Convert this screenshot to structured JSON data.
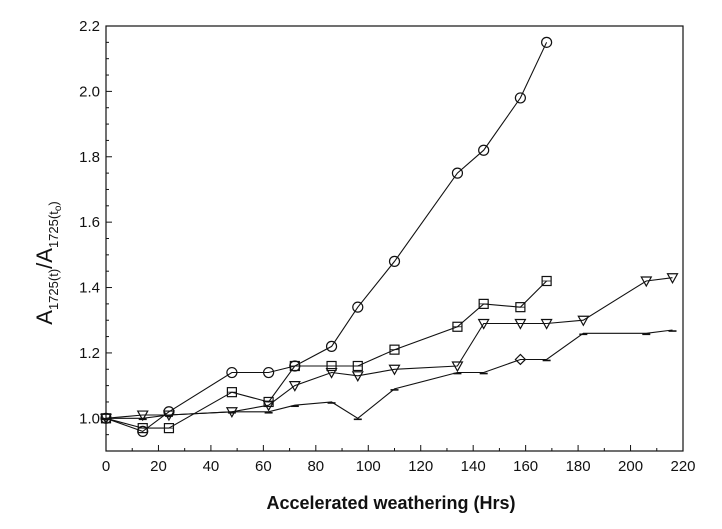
{
  "chart_data": {
    "type": "line",
    "xlabel": "Accelerated weathering (Hrs)",
    "ylabel": {
      "numerator_main": "A",
      "numerator_sub": "1725(t)",
      "slash": "/",
      "denominator_main": "A",
      "denominator_sub": "1725(t",
      "denominator_sub_index": "o",
      "denominator_sub_close": ")"
    },
    "xlim": [
      0,
      220
    ],
    "ylim": [
      0.9,
      2.2
    ],
    "xticks": [
      0,
      20,
      40,
      60,
      80,
      100,
      120,
      140,
      160,
      180,
      200,
      220
    ],
    "xtick_labels": [
      "0",
      "20",
      "40",
      "60",
      "80",
      "100",
      "120",
      "140",
      "160",
      "180",
      "200",
      "220"
    ],
    "yticks": [
      1.0,
      1.2,
      1.4,
      1.6,
      1.8,
      2.0,
      2.2
    ],
    "ytick_labels": [
      "1.0",
      "1.2",
      "1.4",
      "1.6",
      "1.8",
      "2.0",
      "2.2"
    ],
    "grid": false,
    "legend": "none",
    "series": [
      {
        "marker": "circle",
        "x": [
          0,
          14,
          24,
          48,
          62,
          72,
          86,
          96,
          110,
          134,
          144,
          158,
          168
        ],
        "y": [
          1.0,
          0.96,
          1.02,
          1.14,
          1.14,
          1.16,
          1.22,
          1.34,
          1.48,
          1.75,
          1.82,
          1.98,
          2.15
        ]
      },
      {
        "marker": "square",
        "x": [
          0,
          14,
          24,
          48,
          62,
          72,
          86,
          96,
          110,
          134,
          144,
          158,
          168
        ],
        "y": [
          1.0,
          0.97,
          0.97,
          1.08,
          1.05,
          1.16,
          1.16,
          1.16,
          1.21,
          1.28,
          1.35,
          1.34,
          1.42
        ]
      },
      {
        "marker": "triangle-down",
        "x": [
          0,
          14,
          24,
          48,
          62,
          72,
          86,
          96,
          110,
          134,
          144,
          158,
          168,
          182,
          206,
          216
        ],
        "y": [
          1.0,
          1.01,
          1.01,
          1.02,
          1.04,
          1.1,
          1.14,
          1.13,
          1.15,
          1.16,
          1.29,
          1.29,
          1.29,
          1.3,
          1.42,
          1.43
        ]
      },
      {
        "marker": "diamond",
        "x": [
          0,
          14,
          24,
          48,
          62,
          72,
          86,
          96,
          110,
          134,
          144,
          158,
          168,
          182,
          206,
          216
        ],
        "y": [
          1.0,
          1.0,
          1.01,
          1.02,
          1.02,
          1.04,
          1.05,
          1.0,
          1.09,
          1.14,
          1.14,
          1.18,
          1.18,
          1.26,
          1.26,
          1.27
        ]
      }
    ]
  }
}
